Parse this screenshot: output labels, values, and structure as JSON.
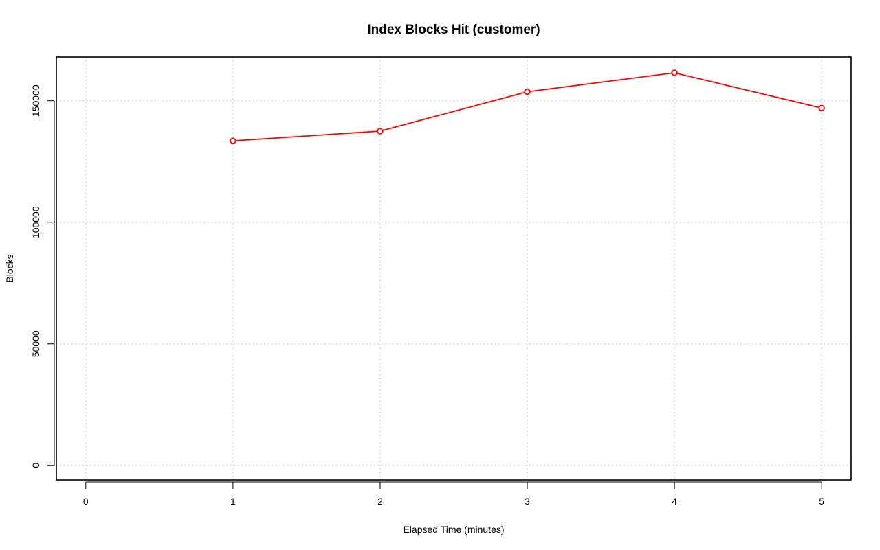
{
  "chart_data": {
    "type": "line",
    "title": "Index Blocks Hit (customer)",
    "xlabel": "Elapsed Time (minutes)",
    "ylabel": "Blocks",
    "xlim": [
      -0.2,
      5.2
    ],
    "ylim": [
      -6000,
      168000
    ],
    "x_ticks": [
      0,
      1,
      2,
      3,
      4,
      5
    ],
    "y_ticks": [
      0,
      50000,
      100000,
      150000
    ],
    "grid": true,
    "series": [
      {
        "x": [
          1,
          2,
          3,
          4,
          5
        ],
        "values": [
          133500,
          137500,
          153700,
          161500,
          147000
        ],
        "color": "#ff0000",
        "marker": "open-circle"
      }
    ]
  }
}
